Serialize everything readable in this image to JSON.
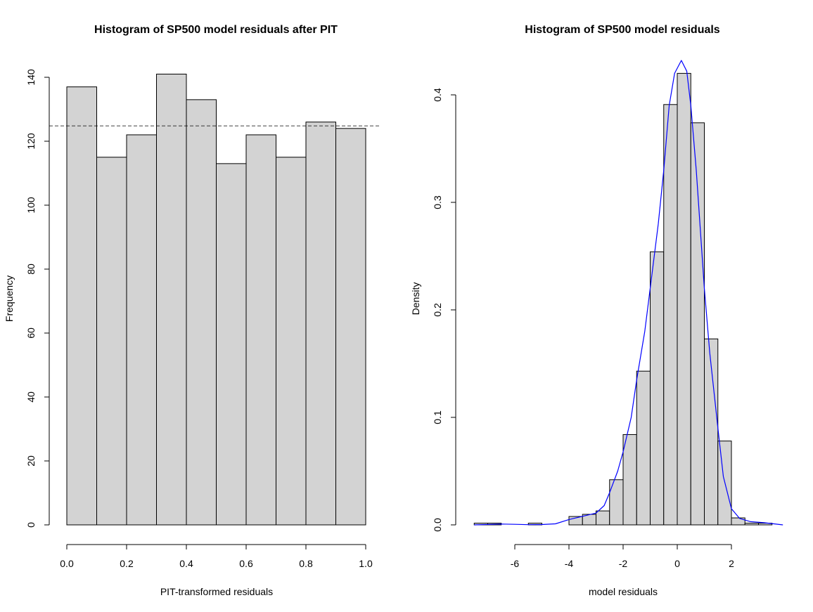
{
  "chart_data": [
    {
      "type": "bar",
      "title": "Histogram of SP500 model residuals after PIT",
      "xlabel": "PIT-transformed residuals",
      "ylabel": "Frequency",
      "bin_edges": [
        0.0,
        0.1,
        0.2,
        0.3,
        0.4,
        0.5,
        0.6,
        0.7,
        0.8,
        0.9,
        1.0
      ],
      "values": [
        137,
        115,
        122,
        141,
        133,
        113,
        122,
        115,
        126,
        124
      ],
      "xlim": [
        0,
        1
      ],
      "ylim": [
        0,
        140
      ],
      "xticks": [
        "0.0",
        "0.2",
        "0.4",
        "0.6",
        "0.8",
        "1.0"
      ],
      "yticks": [
        "0",
        "20",
        "40",
        "60",
        "80",
        "100",
        "120",
        "140"
      ],
      "reference_line": {
        "y": 124.8,
        "style": "dashed"
      },
      "bar_color": "#d3d3d3"
    },
    {
      "type": "bar",
      "title": "Histogram of SP500 model residuals",
      "xlabel": "model residuals",
      "ylabel": "Density",
      "bin_edges": [
        -7.5,
        -7.0,
        -6.5,
        -6.0,
        -5.5,
        -5.0,
        -4.5,
        -4.0,
        -3.5,
        -3.0,
        -2.5,
        -2.0,
        -1.5,
        -1.0,
        -0.5,
        0.0,
        0.5,
        1.0,
        1.5,
        2.0,
        2.5,
        3.0,
        3.5
      ],
      "values": [
        0.0016,
        0.0016,
        0,
        0,
        0.0016,
        0,
        0,
        0.0078,
        0.0098,
        0.013,
        0.042,
        0.084,
        0.143,
        0.254,
        0.391,
        0.42,
        0.374,
        0.173,
        0.078,
        0.0065,
        0.0016,
        0.0016
      ],
      "xlim": [
        -7.5,
        3.9
      ],
      "ylim": [
        0,
        0.4
      ],
      "xticks": [
        "-6",
        "-4",
        "-2",
        "0",
        "2"
      ],
      "yticks": [
        "0.0",
        "0.1",
        "0.2",
        "0.3",
        "0.4"
      ],
      "bar_color": "#d3d3d3",
      "density_curve": {
        "color": "#0000ff",
        "x": [
          -7.5,
          -6.5,
          -6,
          -5.5,
          -5,
          -4.5,
          -4,
          -3.5,
          -3,
          -2.7,
          -2.5,
          -2.2,
          -2,
          -1.7,
          -1.5,
          -1.2,
          -1,
          -0.7,
          -0.5,
          -0.3,
          -0.1,
          0.15,
          0.35,
          0.5,
          0.7,
          1,
          1.2,
          1.5,
          1.7,
          2,
          2.3,
          2.7,
          3.2,
          3.9
        ],
        "y": [
          0,
          0.0008,
          0.0005,
          0.0002,
          0.0003,
          0.001,
          0.005,
          0.008,
          0.011,
          0.018,
          0.03,
          0.05,
          0.068,
          0.1,
          0.135,
          0.18,
          0.22,
          0.28,
          0.33,
          0.39,
          0.42,
          0.432,
          0.422,
          0.39,
          0.33,
          0.22,
          0.16,
          0.09,
          0.045,
          0.015,
          0.006,
          0.003,
          0.002,
          0
        ]
      }
    }
  ]
}
